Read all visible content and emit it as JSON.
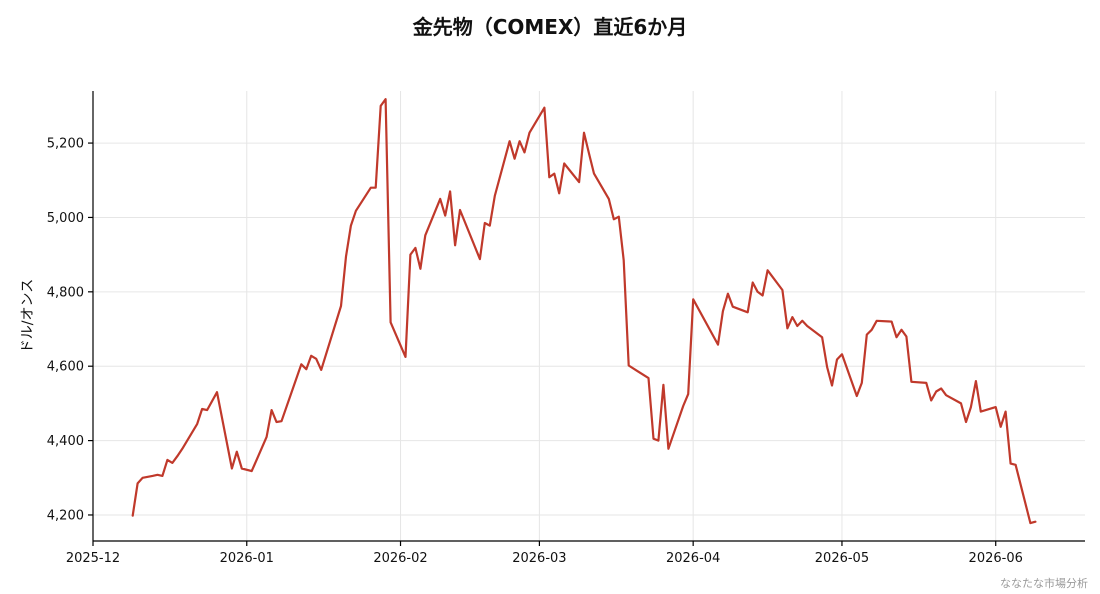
{
  "chart_data": {
    "type": "line",
    "title": "金先物（COMEX）直近6か月",
    "xlabel": "",
    "ylabel": "ドル/オンス",
    "x_axis_type": "date",
    "xlim": [
      "2025-12-01",
      "2026-06-19"
    ],
    "ylim": [
      4130,
      5340
    ],
    "yticks": [
      4200,
      4400,
      4600,
      4800,
      5000,
      5200
    ],
    "ytick_labels": [
      "4,200",
      "4,400",
      "4,600",
      "4,800",
      "5,000",
      "5,200"
    ],
    "xticks": [
      "2025-12-01",
      "2026-01-01",
      "2026-02-01",
      "2026-03-01",
      "2026-04-01",
      "2026-05-01",
      "2026-06-01"
    ],
    "xtick_labels": [
      "2025-12",
      "2026-01",
      "2026-02",
      "2026-03",
      "2026-04",
      "2026-05",
      "2026-06"
    ],
    "grid": true,
    "line_color": "#c0392b",
    "series": [
      {
        "x": [
          "2025-12-09",
          "2025-12-10",
          "2025-12-11",
          "2025-12-13",
          "2025-12-14",
          "2025-12-15",
          "2025-12-16",
          "2025-12-17",
          "2025-12-18",
          "2025-12-19",
          "2025-12-22",
          "2025-12-23",
          "2025-12-24",
          "2025-12-26",
          "2025-12-29",
          "2025-12-30",
          "2025-12-31",
          "2026-01-02",
          "2026-01-05",
          "2026-01-06",
          "2026-01-07",
          "2026-01-08",
          "2026-01-12",
          "2026-01-13",
          "2026-01-14",
          "2026-01-15",
          "2026-01-16",
          "2026-01-20",
          "2026-01-21",
          "2026-01-22",
          "2026-01-23",
          "2026-01-26",
          "2026-01-27",
          "2026-01-28",
          "2026-01-29",
          "2026-01-30",
          "2026-02-02",
          "2026-02-03",
          "2026-02-04",
          "2026-02-05",
          "2026-02-06",
          "2026-02-09",
          "2026-02-10",
          "2026-02-11",
          "2026-02-12",
          "2026-02-13",
          "2026-02-17",
          "2026-02-18",
          "2026-02-19",
          "2026-02-20",
          "2026-02-23",
          "2026-02-24",
          "2026-02-25",
          "2026-02-26",
          "2026-02-27",
          "2026-03-02",
          "2026-03-03",
          "2026-03-04",
          "2026-03-05",
          "2026-03-06",
          "2026-03-09",
          "2026-03-10",
          "2026-03-11",
          "2026-03-12",
          "2026-03-15",
          "2026-03-16",
          "2026-03-17",
          "2026-03-18",
          "2026-03-19",
          "2026-03-23",
          "2026-03-24",
          "2026-03-25",
          "2026-03-26",
          "2026-03-27",
          "2026-03-30",
          "2026-03-31",
          "2026-04-01",
          "2026-04-06",
          "2026-04-07",
          "2026-04-08",
          "2026-04-09",
          "2026-04-12",
          "2026-04-13",
          "2026-04-14",
          "2026-04-15",
          "2026-04-16",
          "2026-04-19",
          "2026-04-20",
          "2026-04-21",
          "2026-04-22",
          "2026-04-23",
          "2026-04-24",
          "2026-04-27",
          "2026-04-28",
          "2026-04-29",
          "2026-04-30",
          "2026-05-01",
          "2026-05-04",
          "2026-05-05",
          "2026-05-06",
          "2026-05-07",
          "2026-05-08",
          "2026-05-11",
          "2026-05-12",
          "2026-05-13",
          "2026-05-14",
          "2026-05-15",
          "2026-05-18",
          "2026-05-19",
          "2026-05-20",
          "2026-05-21",
          "2026-05-22",
          "2026-05-25",
          "2026-05-26",
          "2026-05-27",
          "2026-05-28",
          "2026-05-29",
          "2026-06-01",
          "2026-06-02",
          "2026-06-03",
          "2026-06-04",
          "2026-06-05",
          "2026-06-08",
          "2026-06-09"
        ],
        "y": [
          4198,
          4285,
          4300,
          4305,
          4308,
          4305,
          4348,
          4340,
          4358,
          4378,
          4445,
          4485,
          4482,
          4530,
          4325,
          4370,
          4325,
          4318,
          4410,
          4482,
          4450,
          4452,
          4605,
          4592,
          4628,
          4620,
          4590,
          4762,
          4895,
          4978,
          5018,
          5080,
          5080,
          5300,
          5318,
          4718,
          4625,
          4900,
          4918,
          4862,
          4952,
          5050,
          5005,
          5070,
          4925,
          5020,
          4888,
          4985,
          4978,
          5058,
          5205,
          5158,
          5205,
          5175,
          5228,
          5295,
          5108,
          5118,
          5065,
          5145,
          5095,
          5228,
          5172,
          5118,
          5050,
          4995,
          5002,
          4885,
          4602,
          4568,
          4405,
          4400,
          4550,
          4378,
          4493,
          4525,
          4780,
          4658,
          4748,
          4795,
          4760,
          4745,
          4825,
          4800,
          4790,
          4858,
          4805,
          4702,
          4732,
          4708,
          4722,
          4708,
          4678,
          4598,
          4548,
          4618,
          4632,
          4520,
          4555,
          4685,
          4698,
          4722,
          4720,
          4678,
          4698,
          4680,
          4558,
          4555,
          4508,
          4532,
          4540,
          4522,
          4500,
          4450,
          4490,
          4560,
          4478,
          4490,
          4437,
          4478,
          4338,
          4335,
          4178,
          4182
        ]
      }
    ]
  },
  "watermark": "ななたな市場分析"
}
